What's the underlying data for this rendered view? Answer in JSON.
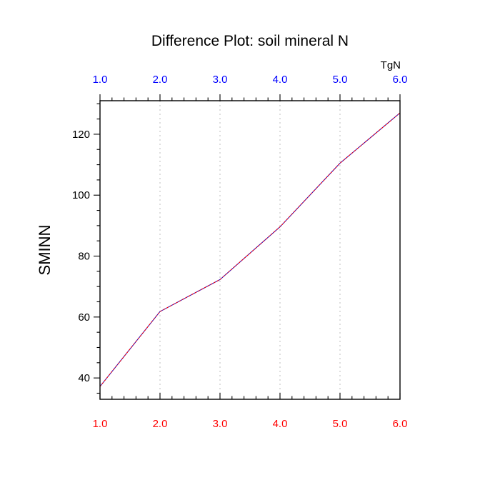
{
  "chart_data": {
    "type": "line",
    "title": "Difference Plot: soil mineral N",
    "ylabel": "SMINN",
    "top_axis_units": "TgN",
    "x": [
      1.0,
      2.0,
      3.0,
      4.0,
      5.0,
      6.0
    ],
    "series": [
      {
        "values": [
          37.2,
          61.8,
          72.3,
          89.6,
          110.5,
          127.0
        ],
        "color": "#4b0a9c",
        "dash_color": "#ff0000",
        "style": "dashed"
      }
    ],
    "xlim": [
      1.0,
      6.0
    ],
    "ylim": [
      33,
      131
    ],
    "xticks": [
      "1.0",
      "2.0",
      "3.0",
      "4.0",
      "5.0",
      "6.0"
    ],
    "xtick_values": [
      1,
      2,
      3,
      4,
      5,
      6
    ],
    "yticks": [
      "40",
      "60",
      "80",
      "100",
      "120"
    ],
    "ytick_values": [
      40,
      60,
      80,
      100,
      120
    ],
    "bottom_tick_color": "#ff0000",
    "top_tick_color": "#0000ff",
    "vertical_grid": true,
    "grid_style": "dotted",
    "grid_color": "#c8c8c8"
  }
}
